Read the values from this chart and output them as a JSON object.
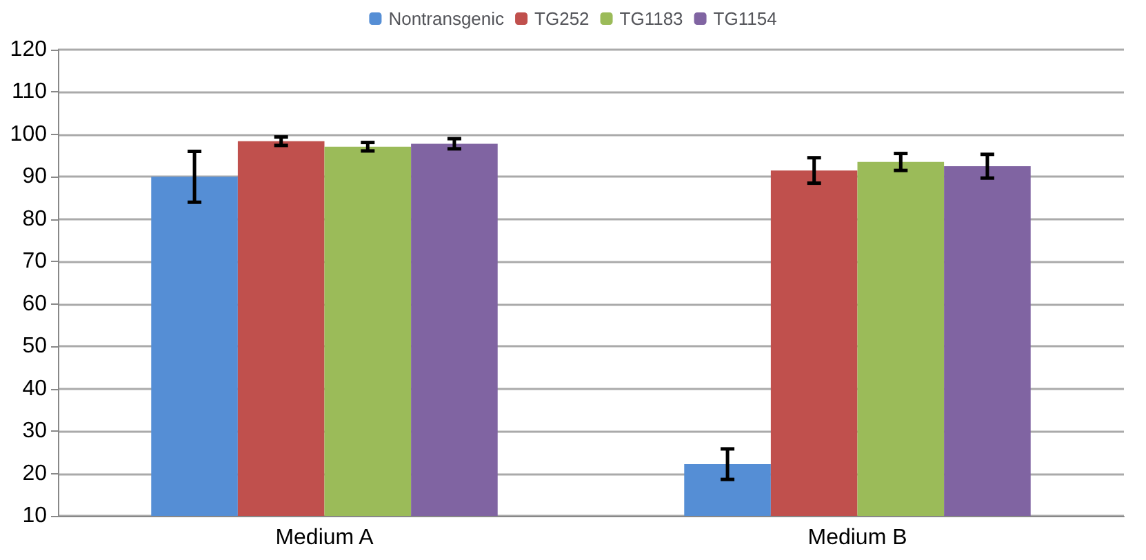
{
  "chart_data": {
    "type": "bar",
    "categories": [
      "Medium A",
      "Medium B"
    ],
    "series": [
      {
        "name": "Nontransgenic",
        "color": "#558ed5",
        "values": [
          90,
          22.2
        ],
        "errors": [
          6,
          3.6
        ]
      },
      {
        "name": "TG252",
        "color": "#c0504d",
        "values": [
          98.4,
          91.5
        ],
        "errors": [
          1,
          3
        ]
      },
      {
        "name": "TG1183",
        "color": "#9bbb59",
        "values": [
          97.1,
          93.5
        ],
        "errors": [
          1,
          2
        ]
      },
      {
        "name": "TG1154",
        "color": "#8064a2",
        "values": [
          97.8,
          92.5
        ],
        "errors": [
          1.2,
          2.8
        ]
      }
    ],
    "ylim": [
      10,
      120
    ],
    "yticks": [
      10,
      20,
      30,
      40,
      50,
      60,
      70,
      80,
      90,
      100,
      110,
      120
    ],
    "grid": "y",
    "legend": "top"
  }
}
